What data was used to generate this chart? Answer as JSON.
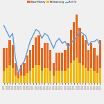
{
  "title": "",
  "legend": [
    "New Money",
    "Refinancing",
    "Refi %"
  ],
  "background_color": "#f0f0f0",
  "quarters": [
    "4Q07",
    "1Q08",
    "2Q08",
    "3Q08",
    "4Q08",
    "1Q09",
    "2Q09",
    "3Q09",
    "4Q09",
    "1Q10",
    "2Q10",
    "3Q10",
    "4Q10",
    "1Q11",
    "2Q11",
    "3Q11",
    "4Q11",
    "1Q12",
    "2Q12",
    "3Q12",
    "4Q12",
    "1Q13",
    "2Q13",
    "3Q13",
    "4Q13",
    "1Q14",
    "2Q14",
    "3Q14",
    "4Q14",
    "1Q15",
    "2Q15",
    "3Q15",
    "4Q15",
    "1Q16"
  ],
  "new_money": [
    18,
    16,
    20,
    18,
    10,
    5,
    8,
    10,
    14,
    16,
    18,
    22,
    24,
    18,
    20,
    20,
    16,
    10,
    14,
    14,
    14,
    16,
    20,
    26,
    30,
    34,
    28,
    24,
    22,
    16,
    20,
    18,
    14,
    22
  ],
  "refinancing": [
    10,
    12,
    14,
    12,
    6,
    4,
    6,
    6,
    8,
    10,
    12,
    14,
    14,
    10,
    12,
    12,
    10,
    6,
    10,
    10,
    10,
    10,
    12,
    16,
    18,
    20,
    16,
    14,
    12,
    10,
    12,
    10,
    8,
    12
  ],
  "refi_pct": [
    68,
    62,
    56,
    60,
    35,
    20,
    28,
    32,
    42,
    52,
    58,
    64,
    62,
    55,
    60,
    58,
    52,
    45,
    52,
    55,
    50,
    52,
    46,
    50,
    54,
    56,
    62,
    60,
    58,
    48,
    52,
    52,
    54,
    48
  ],
  "bar_ylim": [
    0,
    55
  ],
  "line_ylim": [
    10,
    80
  ],
  "new_money_color": "#e8651a",
  "refinancing_color": "#f5b800",
  "refi_pct_color": "#5b9bd5",
  "line_width": 1.0
}
